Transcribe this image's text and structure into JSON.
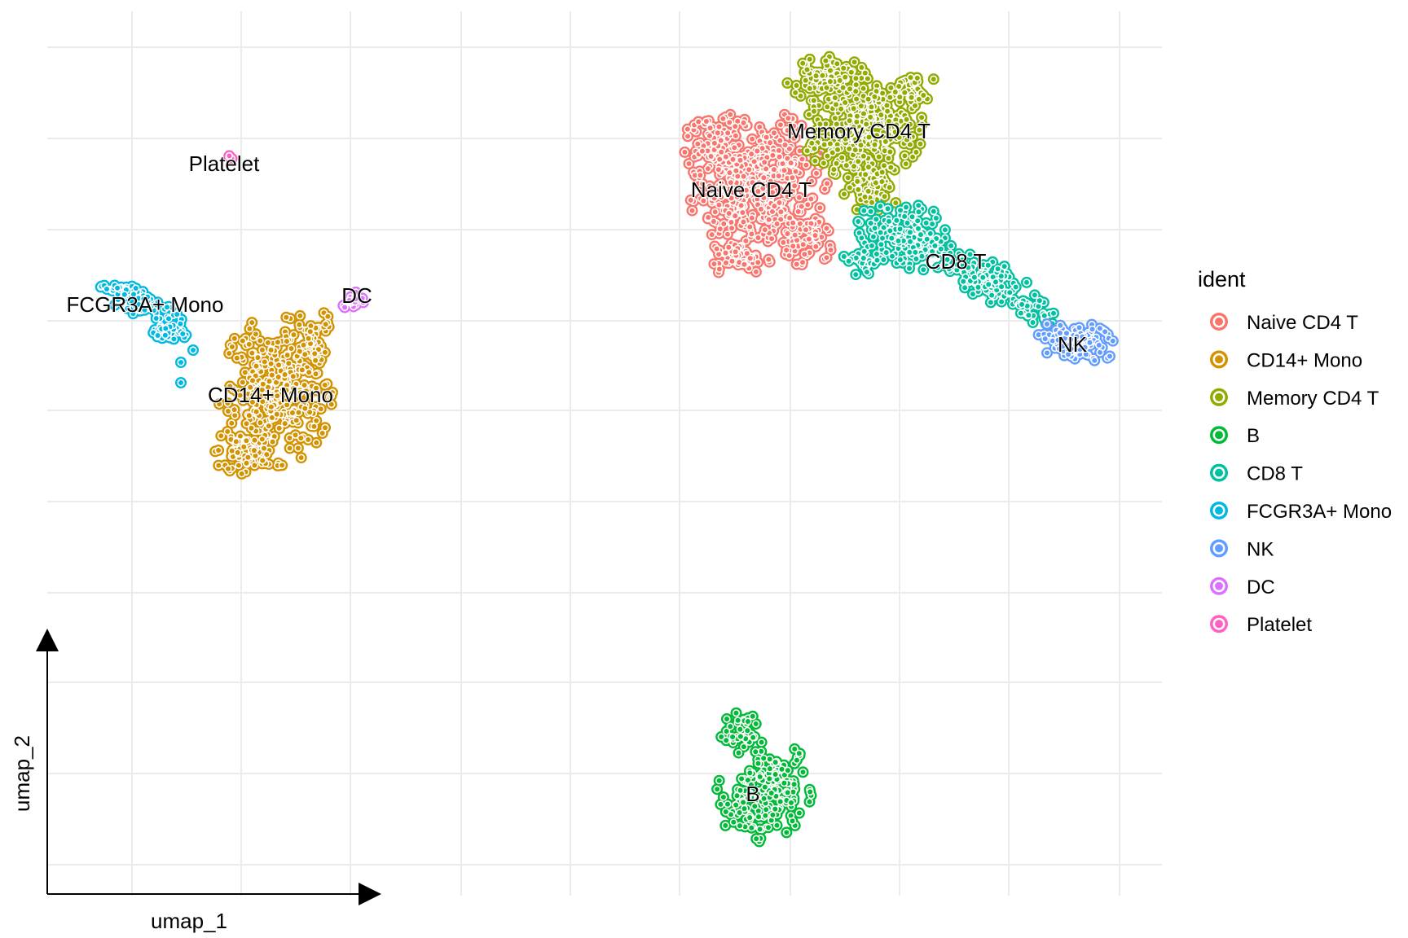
{
  "chart_data": {
    "type": "scatter",
    "title": "",
    "xlabel": "umap_1",
    "ylabel": "umap_2",
    "grid": true,
    "axis_ticks_shown": false,
    "legend": {
      "title": "ident",
      "position": "right"
    },
    "colors": {
      "Naive CD4 T": "#F8766D",
      "CD14+ Mono": "#D39200",
      "Memory CD4 T": "#93AA00",
      "B": "#00BA38",
      "CD8 T": "#00C19F",
      "FCGR3A+ Mono": "#00B9E3",
      "NK": "#619CFF",
      "DC": "#DB72FB",
      "Platelet": "#FF61C3"
    },
    "series": [
      {
        "name": "Naive CD4 T",
        "centroid": [
          2.3,
          5.6
        ]
      },
      {
        "name": "CD14+ Mono",
        "centroid": [
          -12.7,
          -1.0
        ]
      },
      {
        "name": "Memory CD4 T",
        "centroid": [
          3.2,
          6.8
        ]
      },
      {
        "name": "B",
        "centroid": [
          2.0,
          -11.4
        ]
      },
      {
        "name": "CD8 T",
        "centroid": [
          5.5,
          3.9
        ]
      },
      {
        "name": "FCGR3A+ Mono",
        "centroid": [
          -14.3,
          0.9
        ]
      },
      {
        "name": "NK",
        "centroid": [
          8.2,
          2.4
        ]
      },
      {
        "name": "DC",
        "centroid": [
          -11.4,
          1.1
        ]
      },
      {
        "name": "Platelet",
        "centroid": [
          -13.5,
          5.0
        ]
      }
    ],
    "approx_xlim": [
      -16,
      10
    ],
    "approx_ylim": [
      -14,
      9
    ]
  }
}
